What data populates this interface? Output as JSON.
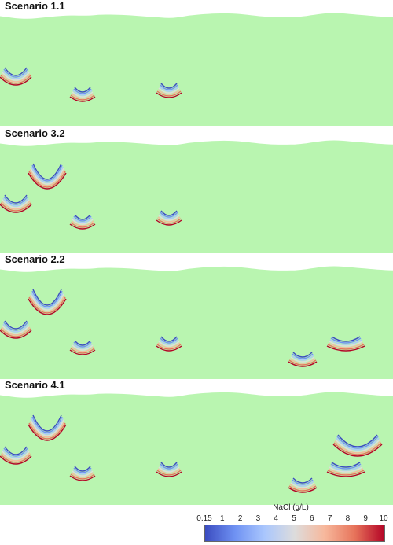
{
  "panels": [
    {
      "title": "Scenario 1.1",
      "variant": 0
    },
    {
      "title": "Scenario 3.2",
      "variant": 1
    },
    {
      "title": "Scenario 2.2",
      "variant": 2
    },
    {
      "title": "Scenario 4.1",
      "variant": 3
    }
  ],
  "colorbar": {
    "title": "NaCl (g/L)",
    "ticks": [
      "0.15",
      "1",
      "2",
      "3",
      "4",
      "5",
      "6",
      "7",
      "8",
      "9",
      "10"
    ],
    "colors": [
      "#3b4cc0",
      "#6f92f3",
      "#aac7fd",
      "#dddcdc",
      "#f7b89c",
      "#e7745b",
      "#b40426"
    ]
  },
  "layer_colors": {
    "top_green": "#b9f5b0",
    "light_grey": "#e0e0e0",
    "light_blue": "#bfe6fb",
    "grey": "#c2c2c2",
    "lavender": "#b8bff0",
    "tan": "#f0ddb8",
    "yellow": "#fbf0a8",
    "pink": "#e8b4f0",
    "cream": "#fdf6d2"
  }
}
